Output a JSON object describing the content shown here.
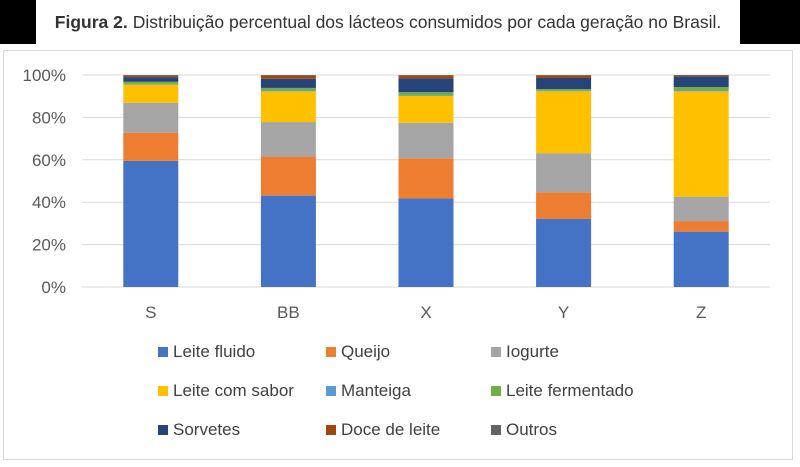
{
  "caption": {
    "label": "Figura 2.",
    "text": "Distribuição percentual dos lácteos consumidos por cada geração no Brasil."
  },
  "chart_data": {
    "type": "bar",
    "stacked": "percent",
    "title": "",
    "xlabel": "",
    "ylabel": "",
    "ylim": [
      0,
      100
    ],
    "yticks": [
      "0%",
      "20%",
      "40%",
      "60%",
      "80%",
      "100%"
    ],
    "grid": true,
    "legend_position": "bottom",
    "categories": [
      "S",
      "BB",
      "X",
      "Y",
      "Z"
    ],
    "series": [
      {
        "name": "Leite fluido",
        "color": "#4472c4",
        "values": [
          59.5,
          43.1,
          41.8,
          32.1,
          26.1
        ]
      },
      {
        "name": "Queijo",
        "color": "#ed7d31",
        "values": [
          13.2,
          18.4,
          18.9,
          12.6,
          5.0
        ]
      },
      {
        "name": "Iogurte",
        "color": "#a5a5a5",
        "values": [
          14.2,
          16.3,
          16.8,
          18.4,
          11.5
        ]
      },
      {
        "name": "Leite com sabor",
        "color": "#ffc000",
        "values": [
          8.6,
          14.5,
          12.6,
          29.2,
          49.7
        ]
      },
      {
        "name": "Manteiga",
        "color": "#5b9bd5",
        "values": [
          0.3,
          0.4,
          0.4,
          0.3,
          0.4
        ]
      },
      {
        "name": "Leite fermentado",
        "color": "#70ad47",
        "values": [
          1.0,
          1.2,
          1.4,
          0.8,
          1.6
        ]
      },
      {
        "name": "Sorvetes",
        "color": "#264478",
        "values": [
          2.2,
          4.3,
          6.5,
          5.2,
          5.1
        ]
      },
      {
        "name": "Doce de leite",
        "color": "#9e480e",
        "values": [
          0.7,
          1.5,
          1.3,
          1.1,
          0.4
        ]
      },
      {
        "name": "Outros",
        "color": "#636363",
        "values": [
          0.3,
          0.3,
          0.3,
          0.3,
          0.2
        ]
      }
    ]
  }
}
